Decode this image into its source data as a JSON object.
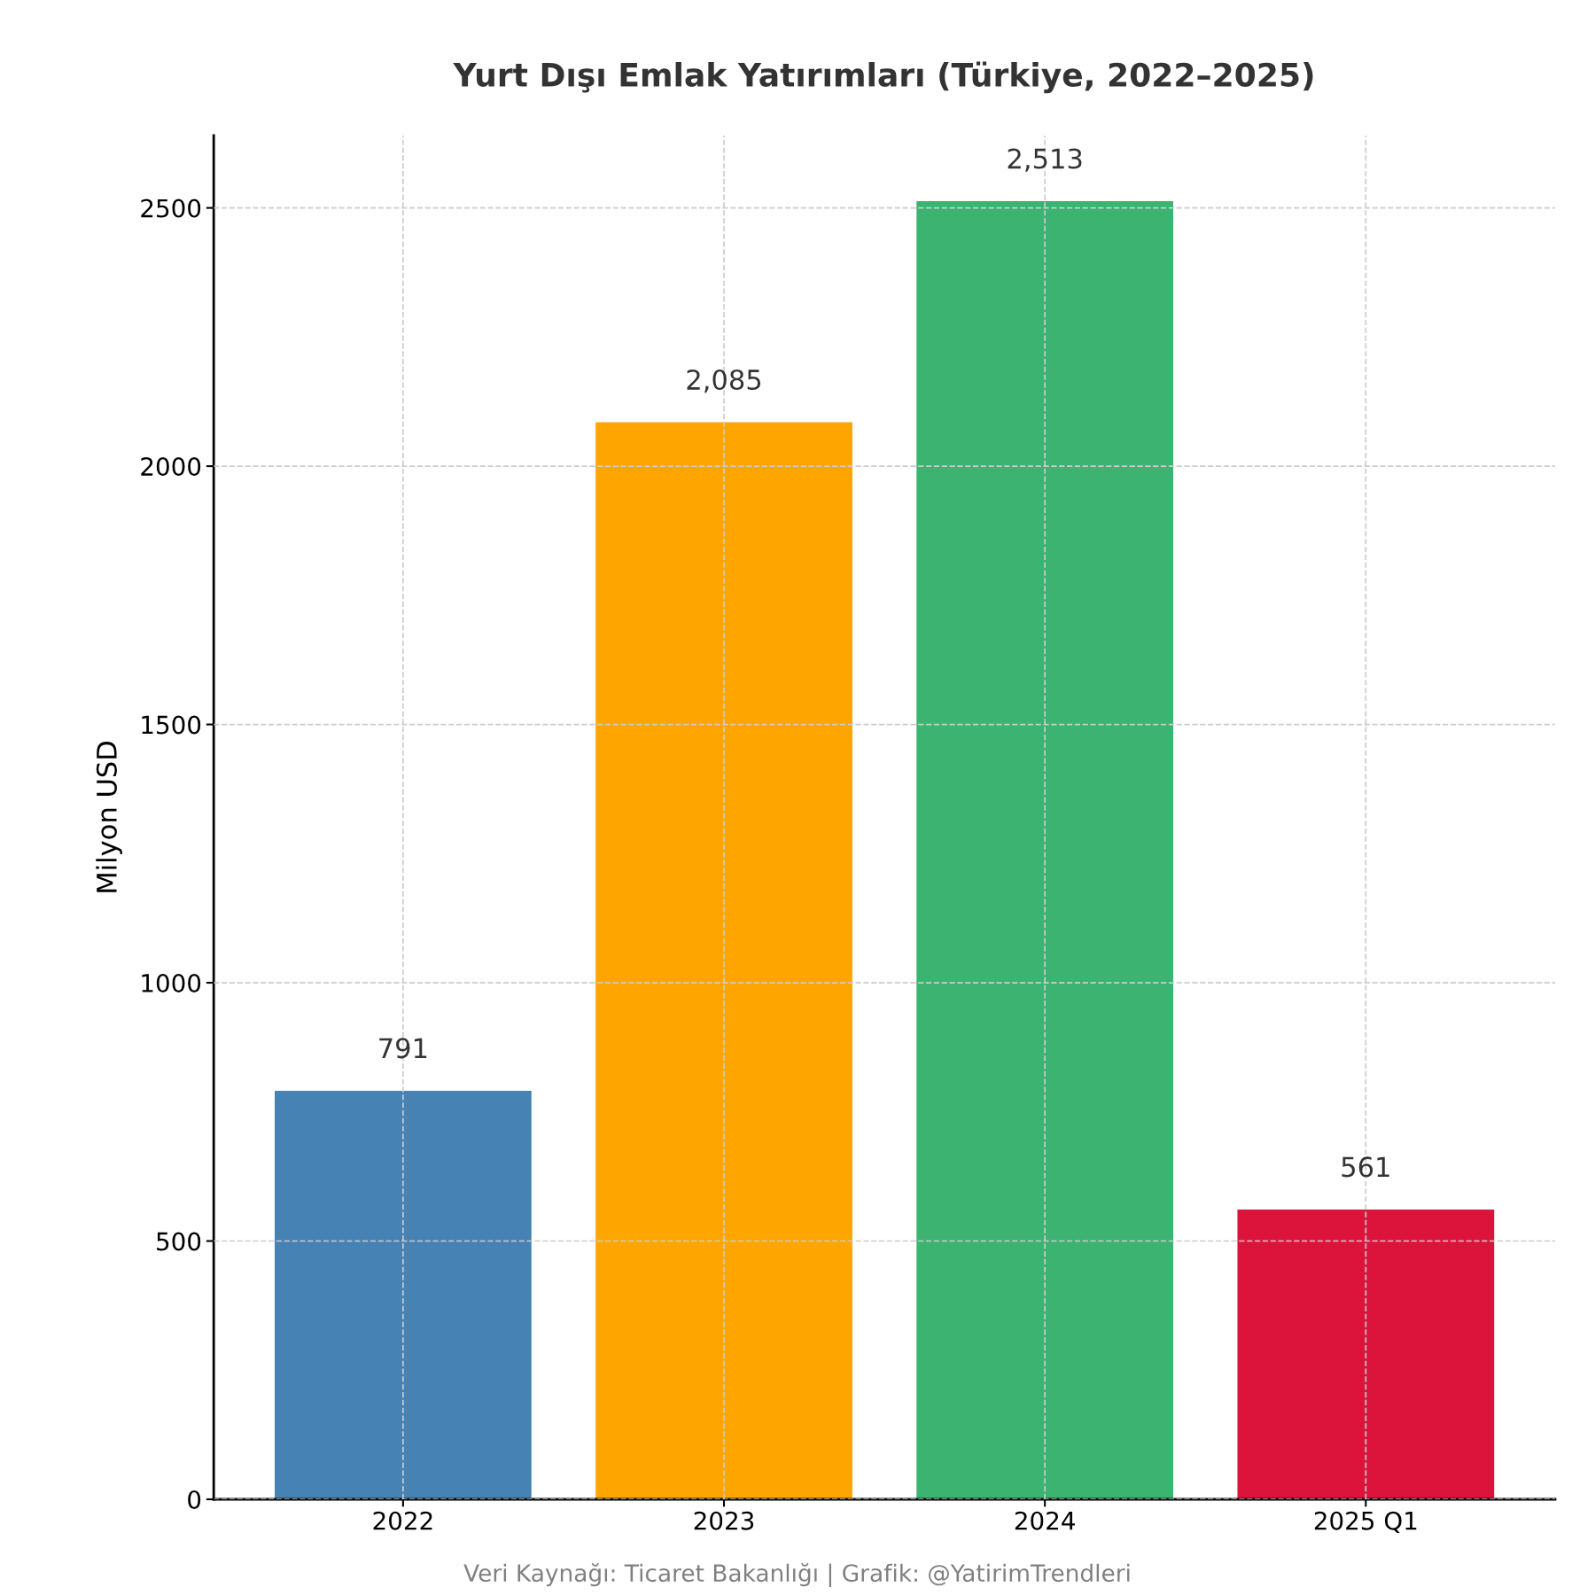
{
  "chart_data": {
    "type": "bar",
    "title": "Yurt Dışı Emlak Yatırımları (Türkiye, 2022–2025)",
    "ylabel": "Milyon USD",
    "categories": [
      "2022",
      "2023",
      "2024",
      "2025 Q1"
    ],
    "values": [
      791,
      2085,
      2513,
      561
    ],
    "value_labels": [
      "791",
      "2,085",
      "2,513",
      "561"
    ],
    "colors": [
      "#4682b4",
      "#ffa500",
      "#3cb371",
      "#dc143c"
    ],
    "ylim": [
      0,
      2640
    ],
    "yticks": [
      0,
      500,
      1000,
      1500,
      2000,
      2500
    ],
    "grid": true,
    "line_style": "dashed",
    "annotations": [
      "Veri Kaynağı: Ticaret Bakanlığı | Grafik: @YatirimTrendleri"
    ]
  }
}
